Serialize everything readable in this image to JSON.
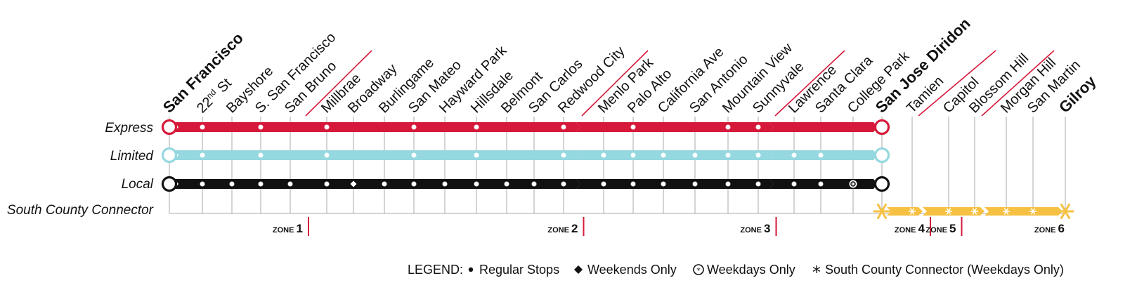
{
  "colors": {
    "express": "#d6193a",
    "limited": "#95d8df",
    "local": "#111111",
    "south_county": "#f6c143",
    "zone_divider": "#d6193a",
    "guide": "#a8a8a8"
  },
  "services": [
    {
      "key": "express",
      "label": "Express"
    },
    {
      "key": "limited",
      "label": "Limited"
    },
    {
      "key": "local",
      "label": "Local"
    },
    {
      "key": "south_county",
      "label": "South County Connector"
    }
  ],
  "stations": [
    {
      "name": "San Francisco",
      "major": true,
      "express": "terminal",
      "limited": "terminal",
      "local": "terminal",
      "south_county": null
    },
    {
      "name": "22nd St",
      "major": false,
      "express": "regular",
      "limited": "regular",
      "local": "regular",
      "south_county": null
    },
    {
      "name": "Bayshore",
      "major": false,
      "express": null,
      "limited": null,
      "local": "regular",
      "south_county": null
    },
    {
      "name": "S. San Francisco",
      "major": false,
      "express": "regular",
      "limited": "regular",
      "local": "regular",
      "south_county": null
    },
    {
      "name": "San Bruno",
      "major": false,
      "express": null,
      "limited": null,
      "local": "regular",
      "south_county": null
    },
    {
      "name": "Millbrae",
      "major": false,
      "express": "regular",
      "limited": "regular",
      "local": "regular",
      "south_county": null
    },
    {
      "name": "Broadway",
      "major": false,
      "express": null,
      "limited": null,
      "local": "weekend",
      "south_county": null
    },
    {
      "name": "Burlingame",
      "major": false,
      "express": null,
      "limited": null,
      "local": "regular",
      "south_county": null
    },
    {
      "name": "San Mateo",
      "major": false,
      "express": "regular",
      "limited": "regular",
      "local": "regular",
      "south_county": null
    },
    {
      "name": "Hayward Park",
      "major": false,
      "express": null,
      "limited": null,
      "local": "regular",
      "south_county": null
    },
    {
      "name": "Hillsdale",
      "major": false,
      "express": "regular",
      "limited": "regular",
      "local": "regular",
      "south_county": null
    },
    {
      "name": "Belmont",
      "major": false,
      "express": null,
      "limited": null,
      "local": "regular",
      "south_county": null
    },
    {
      "name": "San Carlos",
      "major": false,
      "express": null,
      "limited": null,
      "local": "regular",
      "south_county": null
    },
    {
      "name": "Redwood City",
      "major": false,
      "express": "regular",
      "limited": "regular",
      "local": "regular",
      "south_county": null
    },
    {
      "name": "Menlo Park",
      "major": false,
      "express": null,
      "limited": "regular",
      "local": "regular",
      "south_county": null
    },
    {
      "name": "Palo Alto",
      "major": false,
      "express": "regular",
      "limited": "regular",
      "local": "regular",
      "south_county": null
    },
    {
      "name": "California Ave",
      "major": false,
      "express": null,
      "limited": "regular",
      "local": "regular",
      "south_county": null
    },
    {
      "name": "San Antonio",
      "major": false,
      "express": null,
      "limited": "regular",
      "local": "regular",
      "south_county": null
    },
    {
      "name": "Mountain View",
      "major": false,
      "express": "regular",
      "limited": "regular",
      "local": "regular",
      "south_county": null
    },
    {
      "name": "Sunnyvale",
      "major": false,
      "express": "regular",
      "limited": "regular",
      "local": "regular",
      "south_county": null
    },
    {
      "name": "Lawrence",
      "major": false,
      "express": null,
      "limited": "regular",
      "local": "regular",
      "south_county": null
    },
    {
      "name": "Santa Clara",
      "major": false,
      "express": null,
      "limited": "regular",
      "local": "regular",
      "south_county": null
    },
    {
      "name": "College Park",
      "major": false,
      "express": null,
      "limited": null,
      "local": "weekday",
      "south_county": null
    },
    {
      "name": "San Jose Diridon",
      "major": true,
      "express": "terminal",
      "limited": "terminal",
      "local": "terminal",
      "south_county": "terminal"
    },
    {
      "name": "Tamien",
      "major": false,
      "express": null,
      "limited": null,
      "local": null,
      "south_county": "star"
    },
    {
      "name": "Capitol",
      "major": false,
      "express": null,
      "limited": null,
      "local": null,
      "south_county": "star"
    },
    {
      "name": "Blossom Hill",
      "major": false,
      "express": null,
      "limited": null,
      "local": null,
      "south_county": "star"
    },
    {
      "name": "Morgan Hill",
      "major": false,
      "express": null,
      "limited": null,
      "local": null,
      "south_county": "star"
    },
    {
      "name": "San Martin",
      "major": false,
      "express": null,
      "limited": null,
      "local": null,
      "south_county": "star"
    },
    {
      "name": "Gilroy",
      "major": true,
      "express": null,
      "limited": null,
      "local": null,
      "south_county": "terminal"
    }
  ],
  "zones": [
    {
      "word": "ZONE",
      "number": "1",
      "after_station": "San Bruno"
    },
    {
      "word": "ZONE",
      "number": "2",
      "after_station": "Redwood City"
    },
    {
      "word": "ZONE",
      "number": "3",
      "after_station": "Sunnyvale"
    },
    {
      "word": "ZONE",
      "number": "4",
      "after_station": "Tamien"
    },
    {
      "word": "ZONE",
      "number": "5",
      "after_station": "Capitol"
    },
    {
      "word": "ZONE",
      "number": "6",
      "after_station": "Gilroy"
    }
  ],
  "legend": {
    "title": "LEGEND:",
    "regular": "Regular Stops",
    "weekend": "Weekends Only",
    "weekday": "Weekdays Only",
    "south_county": "South County Connector (Weekdays Only)"
  }
}
